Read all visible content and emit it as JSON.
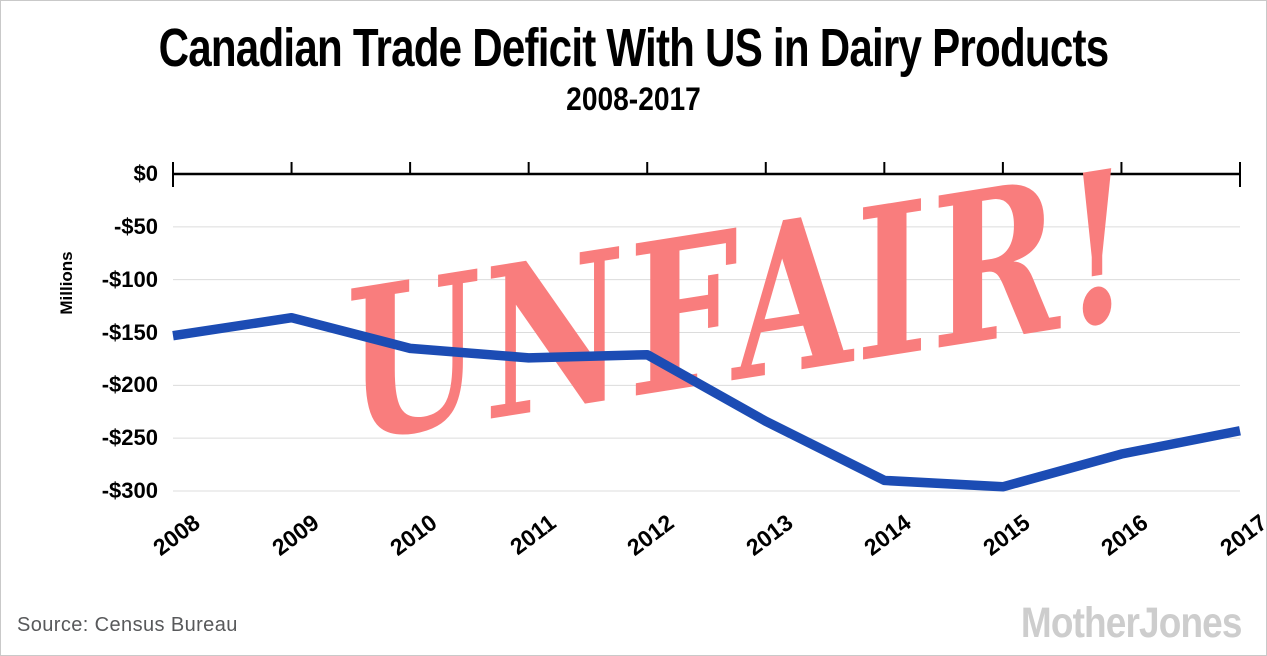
{
  "header": {
    "title": "Canadian Trade Deficit With US in Dairy Products",
    "subtitle": "2008-2017"
  },
  "stamp": {
    "text": "UNFAIR!",
    "color": "#f97d7d",
    "rotation_deg": -9
  },
  "footer": {
    "source": "Source:  Census Bureau",
    "logo": "MotherJones"
  },
  "chart_data": {
    "type": "line",
    "title": "Canadian Trade Deficit With US in Dairy Products",
    "subtitle": "2008-2017",
    "categories": [
      "2008",
      "2009",
      "2010",
      "2011",
      "2012",
      "2013",
      "2014",
      "2015",
      "2016",
      "2017"
    ],
    "series": [
      {
        "name": "Canadian trade deficit with US in dairy products (millions USD)",
        "values": [
          -153,
          -136,
          -165,
          -174,
          -171,
          -234,
          -290,
          -296,
          -265,
          -243
        ]
      }
    ],
    "xlabel": "",
    "ylabel": "Millions",
    "ylim": [
      -300,
      0
    ],
    "yticks": [
      {
        "label": "$0",
        "value": 0
      },
      {
        "label": "-$50",
        "value": -50
      },
      {
        "label": "-$100",
        "value": -100
      },
      {
        "label": "-$150",
        "value": -150
      },
      {
        "label": "-$200",
        "value": -200
      },
      {
        "label": "-$250",
        "value": -250
      },
      {
        "label": "-$300",
        "value": -300
      }
    ],
    "grid": true,
    "legend_position": "none",
    "line_color": "#1c4cb4",
    "grid_color": "#dcdcdc",
    "axis_color": "#000000",
    "annotation": "UNFAIR!"
  }
}
